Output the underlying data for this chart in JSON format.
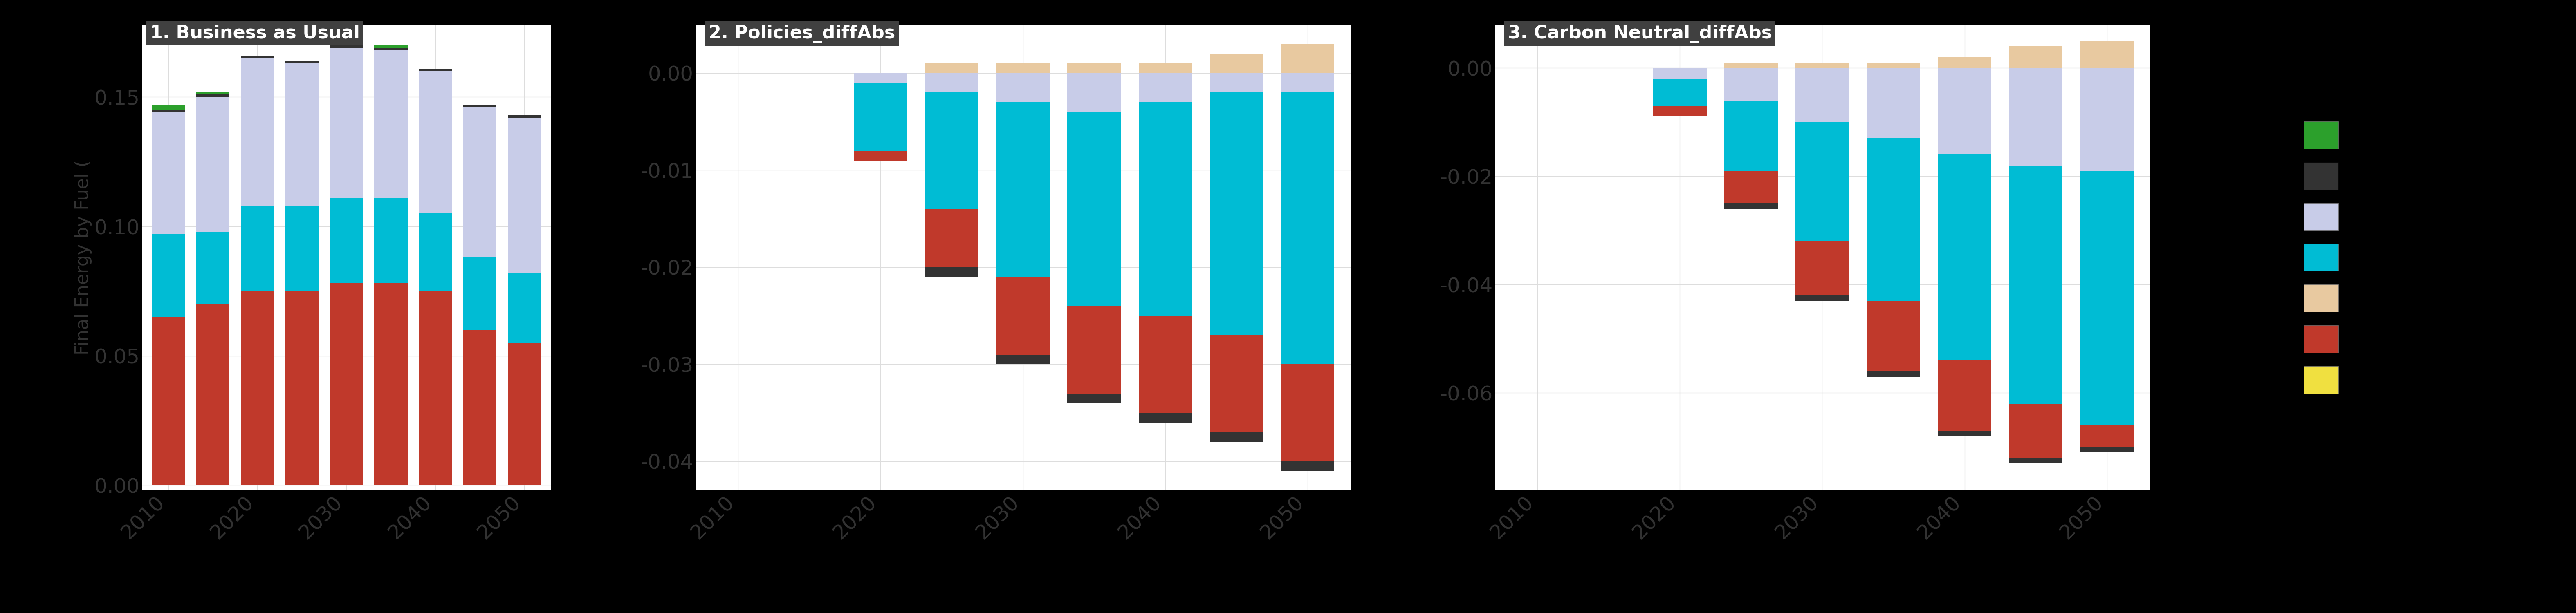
{
  "years_bau": [
    2010,
    2015,
    2020,
    2025,
    2030,
    2035,
    2040,
    2045,
    2050
  ],
  "years_diff": [
    2010,
    2015,
    2020,
    2025,
    2030,
    2035,
    2040,
    2045,
    2050
  ],
  "bau": {
    "biomass": [
      0.002,
      0.001,
      0.0,
      0.0,
      0.001,
      0.001,
      0.0,
      0.0,
      0.0
    ],
    "coal": [
      0.001,
      0.001,
      0.001,
      0.001,
      0.001,
      0.001,
      0.001,
      0.001,
      0.001
    ],
    "electricity": [
      0.047,
      0.052,
      0.057,
      0.055,
      0.058,
      0.057,
      0.055,
      0.058,
      0.06
    ],
    "gas": [
      0.032,
      0.028,
      0.033,
      0.033,
      0.033,
      0.033,
      0.03,
      0.028,
      0.027
    ],
    "hydrogen": [
      0.0,
      0.0,
      0.0,
      0.0,
      0.0,
      0.0,
      0.0,
      0.0,
      0.0
    ],
    "refined_liquids": [
      0.065,
      0.07,
      0.075,
      0.075,
      0.078,
      0.078,
      0.075,
      0.06,
      0.055
    ],
    "solar": [
      0.0,
      0.0,
      0.0,
      0.0,
      0.0,
      0.0,
      0.0,
      0.0,
      0.0
    ]
  },
  "policies_diff": {
    "biomass": [
      0.0,
      0.0,
      0.0,
      0.0,
      0.0,
      0.0,
      0.0,
      0.0,
      0.0
    ],
    "coal": [
      0.0,
      0.0,
      0.0,
      -0.001,
      -0.001,
      -0.001,
      -0.001,
      -0.001,
      -0.001
    ],
    "electricity": [
      0.0,
      0.0,
      -0.001,
      -0.002,
      -0.003,
      -0.004,
      -0.003,
      -0.002,
      -0.002
    ],
    "gas": [
      0.0,
      0.0,
      -0.007,
      -0.012,
      -0.018,
      -0.02,
      -0.022,
      -0.025,
      -0.028
    ],
    "hydrogen": [
      0.0,
      0.0,
      0.0,
      0.001,
      0.001,
      0.001,
      0.001,
      0.002,
      0.003
    ],
    "refined_liquids": [
      0.0,
      0.0,
      -0.001,
      -0.006,
      -0.008,
      -0.009,
      -0.01,
      -0.01,
      -0.01
    ],
    "solar": [
      0.0,
      0.0,
      0.0,
      0.0,
      0.0,
      0.0,
      0.0,
      0.0,
      0.0
    ]
  },
  "carbon_neutral_diff": {
    "biomass": [
      0.0,
      0.0,
      0.0,
      0.0,
      0.0,
      0.0,
      0.0,
      0.0,
      0.0
    ],
    "coal": [
      0.0,
      0.0,
      0.0,
      -0.001,
      -0.001,
      -0.001,
      -0.001,
      -0.001,
      -0.001
    ],
    "electricity": [
      0.0,
      0.0,
      -0.002,
      -0.006,
      -0.01,
      -0.013,
      -0.016,
      -0.018,
      -0.019
    ],
    "gas": [
      0.0,
      0.0,
      -0.005,
      -0.013,
      -0.022,
      -0.03,
      -0.038,
      -0.044,
      -0.047
    ],
    "hydrogen": [
      0.0,
      0.0,
      0.0,
      0.001,
      0.001,
      0.001,
      0.002,
      0.004,
      0.005
    ],
    "refined_liquids": [
      0.0,
      0.0,
      -0.002,
      -0.006,
      -0.01,
      -0.013,
      -0.013,
      -0.01,
      -0.004
    ],
    "solar": [
      0.0,
      0.0,
      0.0,
      0.0,
      0.0,
      0.0,
      0.0,
      0.0,
      0.0
    ]
  },
  "colors": {
    "biomass": "#2ca02c",
    "coal": "#333333",
    "electricity": "#c8cce8",
    "gas": "#00bcd4",
    "hydrogen": "#e8c9a0",
    "refined_liquids": "#c0392b",
    "solar": "#f0e040"
  },
  "panel1_title": "1. Business as Usual",
  "panel2_title": "2. Policies_diffAbs",
  "panel3_title": "3. Carbon Neutral_diffAbs",
  "ylabel": "Final Energy by Fuel (",
  "background_color": "#000000",
  "plot_bg": "#ffffff",
  "title_bg": "#404040",
  "title_fg": "#ffffff",
  "xtick_years": [
    2010,
    2020,
    2030,
    2040,
    2050
  ]
}
